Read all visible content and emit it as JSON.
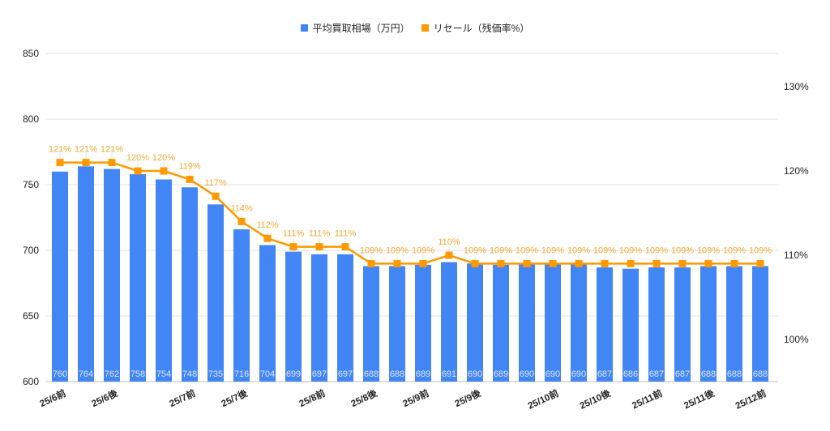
{
  "legend": {
    "bar_label": "平均買取相場（万円）",
    "line_label": "リセール（残価率%）"
  },
  "colors": {
    "bar": "#4285F4",
    "line": "#FF9900",
    "line_label": "#F6A832",
    "bar_label": "#DCE8FD",
    "grid": "#E0E0E0",
    "axis_text": "#222222"
  },
  "chart_data": {
    "type": "bar+line",
    "title": "",
    "xlabel": "",
    "ylabel": "",
    "legend_position": "top",
    "grid": true,
    "categories": [
      "25/6前",
      "",
      "25/6後",
      "",
      "",
      "25/7前",
      "",
      "25/7後",
      "",
      "",
      "25/8前",
      "",
      "25/8後",
      "",
      "25/9前",
      "",
      "25/9後",
      "",
      "",
      "25/10前",
      "",
      "25/10後",
      "",
      "25/11前",
      "",
      "25/11後",
      "",
      "25/12前"
    ],
    "x_tick_labels": [
      {
        "index": 0,
        "label": "25/6前"
      },
      {
        "index": 2,
        "label": "25/6後"
      },
      {
        "index": 5,
        "label": "25/7前"
      },
      {
        "index": 7,
        "label": "25/7後"
      },
      {
        "index": 10,
        "label": "25/8前"
      },
      {
        "index": 12,
        "label": "25/8後"
      },
      {
        "index": 14,
        "label": "25/9前"
      },
      {
        "index": 16,
        "label": "25/9後"
      },
      {
        "index": 19,
        "label": "25/10前"
      },
      {
        "index": 21,
        "label": "25/10後"
      },
      {
        "index": 23,
        "label": "25/11前"
      },
      {
        "index": 25,
        "label": "25/11後"
      },
      {
        "index": 27,
        "label": "25/12前"
      }
    ],
    "series": [
      {
        "name": "平均買取相場（万円）",
        "type": "bar",
        "axis": "left",
        "values": [
          760,
          764,
          762,
          758,
          754,
          748,
          735,
          716,
          704,
          699,
          697,
          697,
          688,
          688,
          689,
          691,
          690,
          689,
          690,
          690,
          690,
          687,
          686,
          687,
          687,
          688,
          688,
          688
        ]
      },
      {
        "name": "リセール（残価率%）",
        "type": "line",
        "axis": "right",
        "values": [
          121,
          121,
          121,
          120,
          120,
          119,
          117,
          114,
          112,
          111,
          111,
          111,
          109,
          109,
          109,
          110,
          109,
          109,
          109,
          109,
          109,
          109,
          109,
          109,
          109,
          109,
          109,
          109
        ]
      }
    ],
    "left_axis": {
      "ylim": [
        600,
        850
      ],
      "ticks": [
        600,
        650,
        700,
        750,
        800,
        850
      ]
    },
    "right_axis": {
      "ylim_visible": [
        95,
        135
      ],
      "ticks": [
        "100%",
        "110%",
        "120%",
        "130%"
      ],
      "tick_values": [
        100,
        110,
        120,
        130
      ]
    }
  }
}
